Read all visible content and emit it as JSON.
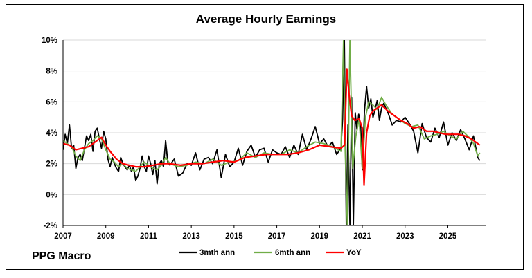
{
  "page": {
    "brand": "PPG Macro"
  },
  "chart_data": {
    "type": "line",
    "title": "Average Hourly Earnings",
    "xlabel": "",
    "ylabel": "",
    "xlim": [
      2007.0,
      2026.8
    ],
    "ylim": [
      -2,
      10
    ],
    "y_ticks": [
      -2,
      0,
      2,
      4,
      6,
      8,
      10
    ],
    "y_tick_labels": [
      "-2%",
      "0%",
      "2%",
      "4%",
      "6%",
      "8%",
      "10%"
    ],
    "x_ticks": [
      2007,
      2009,
      2011,
      2013,
      2015,
      2017,
      2019,
      2021,
      2023,
      2025
    ],
    "x_tick_labels": [
      "2007",
      "2009",
      "2011",
      "2013",
      "2015",
      "2017",
      "2019",
      "2021",
      "2023",
      "2025"
    ],
    "grid": "horizontal",
    "legend": "bottom",
    "series": [
      {
        "name": "3mth ann",
        "color": "#000000",
        "x": [
          2007.0,
          2007.1,
          2007.2,
          2007.3,
          2007.4,
          2007.5,
          2007.6,
          2007.7,
          2007.8,
          2007.9,
          2008.0,
          2008.1,
          2008.2,
          2008.3,
          2008.4,
          2008.5,
          2008.6,
          2008.7,
          2008.8,
          2008.9,
          2009.0,
          2009.1,
          2009.2,
          2009.3,
          2009.4,
          2009.5,
          2009.6,
          2009.7,
          2009.8,
          2009.9,
          2010.0,
          2010.1,
          2010.2,
          2010.3,
          2010.4,
          2010.5,
          2010.6,
          2010.7,
          2010.8,
          2010.9,
          2011.0,
          2011.1,
          2011.2,
          2011.3,
          2011.4,
          2011.5,
          2011.6,
          2011.7,
          2011.8,
          2011.9,
          2012.0,
          2012.2,
          2012.4,
          2012.6,
          2012.8,
          2013.0,
          2013.2,
          2013.4,
          2013.6,
          2013.8,
          2014.0,
          2014.2,
          2014.4,
          2014.6,
          2014.8,
          2015.0,
          2015.2,
          2015.4,
          2015.6,
          2015.8,
          2016.0,
          2016.2,
          2016.4,
          2016.6,
          2016.8,
          2017.0,
          2017.2,
          2017.4,
          2017.6,
          2017.8,
          2018.0,
          2018.2,
          2018.4,
          2018.6,
          2018.8,
          2019.0,
          2019.2,
          2019.4,
          2019.6,
          2019.8,
          2020.0,
          2020.08,
          2020.16,
          2020.25,
          2020.33,
          2020.42,
          2020.5,
          2020.58,
          2020.67,
          2020.75,
          2020.83,
          2020.92,
          2021.0,
          2021.1,
          2021.2,
          2021.3,
          2021.4,
          2021.5,
          2021.6,
          2021.7,
          2021.8,
          2021.9,
          2022.0,
          2022.2,
          2022.4,
          2022.6,
          2022.8,
          2023.0,
          2023.2,
          2023.4,
          2023.6,
          2023.8,
          2024.0,
          2024.2,
          2024.4,
          2024.6,
          2024.8,
          2025.0,
          2025.2,
          2025.4,
          2025.6,
          2025.8,
          2026.0,
          2026.2,
          2026.4,
          2026.5
        ],
        "y": [
          2.9,
          3.9,
          3.3,
          4.5,
          3.0,
          3.2,
          1.7,
          2.4,
          2.6,
          2.2,
          3.0,
          3.8,
          3.5,
          3.9,
          2.8,
          4.1,
          4.3,
          3.6,
          3.0,
          4.1,
          3.6,
          2.3,
          1.8,
          2.4,
          2.0,
          1.7,
          1.5,
          2.4,
          2.0,
          1.8,
          1.6,
          1.9,
          1.5,
          1.8,
          0.9,
          1.2,
          1.7,
          2.5,
          1.8,
          1.5,
          2.5,
          2.0,
          1.3,
          2.2,
          0.7,
          2.0,
          2.2,
          1.8,
          3.5,
          2.1,
          1.9,
          2.3,
          1.2,
          1.4,
          2.0,
          1.9,
          2.7,
          1.6,
          2.3,
          2.4,
          2.0,
          2.9,
          1.1,
          2.6,
          1.8,
          2.1,
          3.0,
          1.9,
          2.8,
          3.2,
          2.4,
          2.9,
          3.0,
          2.1,
          2.9,
          2.7,
          2.6,
          3.1,
          2.4,
          3.2,
          2.6,
          3.9,
          2.9,
          3.6,
          4.4,
          3.3,
          3.6,
          3.1,
          3.4,
          2.6,
          3.0,
          4.9,
          10.0,
          -2.0,
          4.5,
          -2.0,
          6.3,
          -2.0,
          5.3,
          4.2,
          5.2,
          4.5,
          1.6,
          5.4,
          7.0,
          5.6,
          6.2,
          5.0,
          5.5,
          6.1,
          4.8,
          5.6,
          5.9,
          5.3,
          4.5,
          4.8,
          4.7,
          5.0,
          4.6,
          4.1,
          2.7,
          4.6,
          3.7,
          3.4,
          4.3,
          3.7,
          4.7,
          3.2,
          4.0,
          3.5,
          4.2,
          3.6,
          2.9,
          3.8,
          2.4,
          2.2
        ]
      },
      {
        "name": "6mth ann",
        "color": "#70ad47",
        "x": [
          2007.0,
          2007.2,
          2007.4,
          2007.6,
          2007.8,
          2008.0,
          2008.2,
          2008.4,
          2008.6,
          2008.8,
          2009.0,
          2009.2,
          2009.4,
          2009.6,
          2009.8,
          2010.0,
          2010.2,
          2010.4,
          2010.6,
          2010.8,
          2011.0,
          2011.2,
          2011.4,
          2011.6,
          2011.8,
          2012.0,
          2012.4,
          2012.8,
          2013.2,
          2013.6,
          2014.0,
          2014.4,
          2014.8,
          2015.2,
          2015.6,
          2016.0,
          2016.4,
          2016.8,
          2017.2,
          2017.6,
          2018.0,
          2018.4,
          2018.8,
          2019.2,
          2019.6,
          2020.0,
          2020.12,
          2020.2,
          2020.3,
          2020.42,
          2020.55,
          2020.7,
          2020.85,
          2021.0,
          2021.15,
          2021.3,
          2021.5,
          2021.7,
          2021.9,
          2022.1,
          2022.4,
          2022.7,
          2023.0,
          2023.3,
          2023.6,
          2023.9,
          2024.2,
          2024.5,
          2024.8,
          2025.1,
          2025.4,
          2025.7,
          2026.0,
          2026.2,
          2026.4,
          2026.5
        ],
        "y": [
          3.5,
          3.3,
          3.1,
          2.5,
          2.2,
          2.9,
          3.3,
          3.5,
          3.8,
          3.6,
          2.9,
          2.3,
          2.1,
          1.8,
          2.0,
          1.7,
          1.6,
          1.5,
          1.8,
          2.1,
          1.9,
          1.7,
          1.6,
          1.9,
          2.4,
          2.0,
          1.8,
          1.9,
          2.1,
          2.0,
          2.3,
          1.9,
          2.1,
          2.2,
          2.7,
          2.4,
          2.7,
          2.6,
          2.6,
          2.9,
          2.7,
          3.1,
          3.4,
          3.3,
          3.1,
          2.8,
          10.0,
          2.8,
          -2.0,
          10.0,
          1.7,
          3.8,
          4.9,
          1.7,
          5.0,
          6.0,
          5.8,
          5.5,
          6.3,
          5.8,
          5.2,
          4.9,
          4.6,
          4.4,
          4.5,
          3.6,
          3.8,
          3.9,
          4.1,
          3.8,
          3.6,
          4.1,
          3.7,
          3.3,
          2.5,
          2.7
        ]
      },
      {
        "name": "YoY",
        "color": "#ff0000",
        "x": [
          2007.0,
          2007.3,
          2007.6,
          2007.9,
          2008.2,
          2008.5,
          2008.8,
          2009.0,
          2009.2,
          2009.5,
          2009.8,
          2010.1,
          2010.4,
          2010.8,
          2011.2,
          2011.6,
          2012.0,
          2012.5,
          2013.0,
          2013.5,
          2014.0,
          2014.5,
          2015.0,
          2015.5,
          2016.0,
          2016.5,
          2017.0,
          2017.5,
          2018.0,
          2018.5,
          2019.0,
          2019.5,
          2020.0,
          2020.17,
          2020.28,
          2020.38,
          2020.5,
          2020.65,
          2020.85,
          2021.0,
          2021.08,
          2021.2,
          2021.35,
          2021.5,
          2021.7,
          2021.9,
          2022.2,
          2022.5,
          2022.8,
          2023.1,
          2023.4,
          2023.7,
          2024.0,
          2024.3,
          2024.6,
          2024.9,
          2025.2,
          2025.5,
          2025.8,
          2026.1,
          2026.3,
          2026.5
        ],
        "y": [
          3.3,
          3.2,
          2.9,
          3.0,
          3.1,
          3.4,
          3.7,
          3.2,
          2.8,
          2.3,
          2.0,
          1.9,
          1.8,
          1.8,
          1.9,
          2.0,
          2.0,
          1.9,
          2.0,
          2.0,
          2.1,
          2.2,
          2.1,
          2.4,
          2.5,
          2.6,
          2.6,
          2.6,
          2.7,
          2.9,
          3.2,
          3.1,
          3.0,
          3.2,
          8.1,
          6.5,
          5.1,
          4.8,
          4.9,
          4.3,
          0.6,
          4.0,
          5.1,
          5.4,
          5.6,
          5.8,
          5.4,
          5.1,
          4.8,
          4.6,
          4.3,
          4.4,
          4.1,
          4.1,
          4.0,
          3.9,
          3.9,
          3.9,
          3.8,
          3.6,
          3.4,
          3.2
        ]
      }
    ]
  }
}
